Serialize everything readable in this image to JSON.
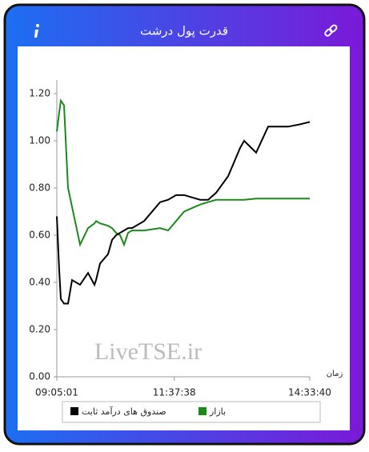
{
  "chart_data": {
    "type": "line",
    "title": "قدرت پول درشت",
    "watermark": "LiveTSE.ir",
    "x_label": "زمان",
    "x": [
      "09:05:01",
      "09:08:08",
      "09:10:13",
      "09:14:23",
      "09:19:35",
      "09:24:47",
      "09:35:11",
      "09:45:35",
      "09:53:54",
      "09:55:59",
      "10:01:11",
      "10:11:35",
      "10:16:47",
      "10:21:59",
      "10:27:11",
      "10:32:23",
      "10:37:35",
      "10:42:47",
      "10:58:23",
      "11:19:11",
      "11:29:35",
      "11:39:59",
      "11:50:23",
      "12:11:11",
      "12:21:35",
      "12:32:00",
      "12:47:35",
      "12:57:59",
      "13:03:11",
      "13:08:23",
      "13:24:00",
      "13:39:35",
      "14:05:35",
      "14:21:11",
      "14:33:40"
    ],
    "series": [
      {
        "name": "بازار",
        "color": "#1a8a1a",
        "values": [
          1.04,
          1.12,
          1.17,
          1.15,
          0.8,
          0.72,
          0.56,
          0.63,
          0.65,
          0.66,
          0.65,
          0.64,
          0.63,
          0.61,
          0.6,
          0.56,
          0.61,
          0.62,
          0.62,
          0.63,
          0.62,
          0.66,
          0.7,
          0.73,
          0.74,
          0.75,
          0.75,
          0.75,
          0.75,
          0.75,
          0.755,
          0.755,
          0.755,
          0.755,
          0.755
        ]
      },
      {
        "name": "صندوق های درآمد ثابت",
        "color": "#000000",
        "values": [
          0.68,
          0.45,
          0.33,
          0.31,
          0.31,
          0.41,
          0.39,
          0.44,
          0.39,
          0.41,
          0.48,
          0.52,
          0.58,
          0.6,
          0.61,
          0.62,
          0.63,
          0.63,
          0.66,
          0.74,
          0.75,
          0.77,
          0.77,
          0.75,
          0.75,
          0.78,
          0.85,
          0.93,
          0.97,
          1.0,
          0.95,
          1.06,
          1.06,
          1.07,
          1.08
        ]
      }
    ],
    "xlim": [
      "09:05:01",
      "14:33:40"
    ],
    "xticks": [
      "09:05:01",
      "11:37:38",
      "14:33:40"
    ],
    "ylim": [
      0,
      1.2
    ],
    "yticks": [
      {
        "value": 0,
        "label": "0.00"
      },
      {
        "value": 0.2,
        "label": "0.20"
      },
      {
        "value": 0.4,
        "label": "0.40"
      },
      {
        "value": 0.6,
        "label": "0.60"
      },
      {
        "value": 0.8,
        "label": "0.80"
      },
      {
        "value": 1.0,
        "label": "1.00"
      },
      {
        "value": 1.2,
        "label": "1.20"
      }
    ]
  }
}
